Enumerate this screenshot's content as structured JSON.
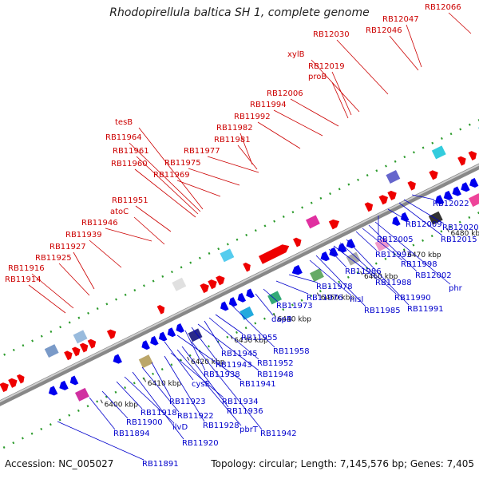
{
  "title": "Rhodopirellula baltica SH 1, complete genome",
  "footer": {
    "accession": "Accession: NC_005027",
    "summary": "Topology: circular; Length: 7,145,576 bp; Genes: 7,405"
  },
  "colors": {
    "forward": "#ee0000",
    "reverse": "#0000ee",
    "axis": "#888888",
    "dots": "#2a9a2a",
    "label_forward": "#cc0000",
    "label_reverse": "#0000cc"
  },
  "ticks": [
    "6400 kbp",
    "6410 kbp",
    "6420 kbp",
    "6430 kbp",
    "6440 kbp",
    "6450 kbp",
    "6460 kbp",
    "6470 kbp",
    "6480 kbp",
    "6490 kbp"
  ],
  "forward_genes": [
    "RB11914",
    "RB11916",
    "RB11925",
    "RB11927",
    "RB11939",
    "RB11946",
    "atoC",
    "RB11951",
    "RB11960",
    "RB11961",
    "RB11964",
    "tesB",
    "RB11969",
    "RB11975",
    "RB11977",
    "RB11981",
    "RB11982",
    "RB11992",
    "RB11994",
    "RB12006",
    "proB",
    "RB12019",
    "xylB",
    "RB12030",
    "RB12046",
    "RB12047",
    "RB12066"
  ],
  "reverse_genes": [
    "RB11891",
    "RB11894",
    "RB11900",
    "RB11918",
    "ilvD",
    "RB11920",
    "RB11922",
    "RB11923",
    "RB11928",
    "RB11934",
    "pbrT",
    "RB11936",
    "RB11942",
    "cysE",
    "RB11941",
    "RB11938",
    "RB11943",
    "RB11948",
    "RB11945",
    "RB11952",
    "RB11955",
    "RB11958",
    "dapB",
    "RB11973",
    "RB11976",
    "RB11978",
    "hisI",
    "RB11985",
    "RB11986",
    "RB11988",
    "RB11990",
    "RB11991",
    "RB11993",
    "RB11998",
    "RB12002",
    "phr",
    "RB12005",
    "RB12009",
    "RB12015",
    "RB12020",
    "RB12022"
  ]
}
